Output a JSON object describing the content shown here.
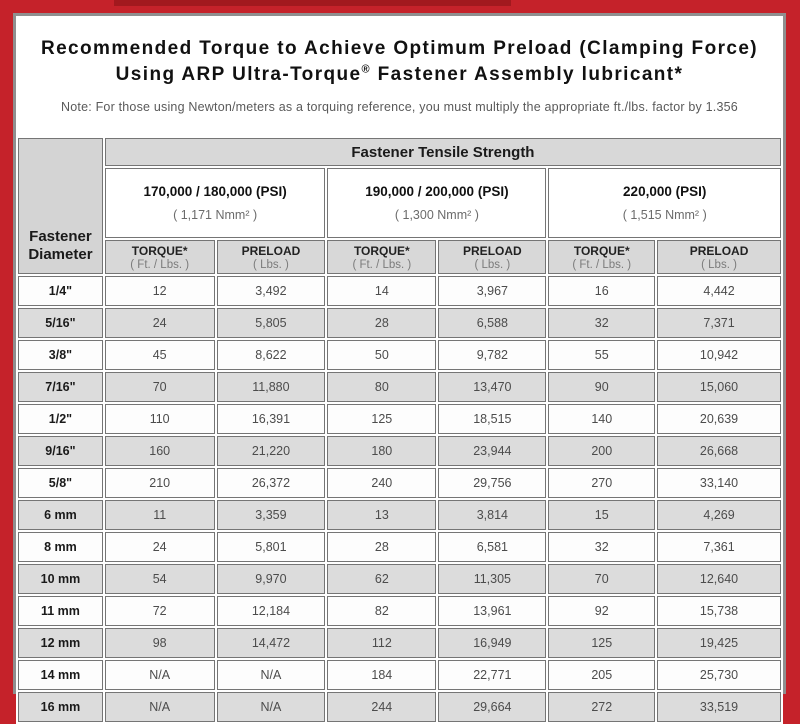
{
  "page": {
    "title_line1": "Recommended Torque to Achieve Optimum Preload (Clamping Force)",
    "title_line2_pre": "Using ARP Ultra-Torque",
    "title_line2_sup": "®",
    "title_line2_post": " Fastener Assembly lubricant*",
    "note": "Note: For those using Newton/meters as a torquing reference, you must multiply the appropriate ft./lbs. factor by 1.356"
  },
  "colors": {
    "background_red": "#c5222a",
    "dark_red_strip": "#a2191e",
    "panel_border_gray": "#8f8f8f",
    "header_gray": "#d8d8d8",
    "alt_row_gray": "#dcdcdc"
  },
  "table": {
    "tensile_header": "Fastener Tensile Strength",
    "diameter_header": "Fastener Diameter",
    "groups": [
      {
        "psi": "170,000 / 180,000 (PSI)",
        "nmm": "( 1,171 Nmm² )"
      },
      {
        "psi": "190,000 / 200,000 (PSI)",
        "nmm": "( 1,300 Nmm² )"
      },
      {
        "psi": "220,000 (PSI)",
        "nmm": "( 1,515 Nmm² )"
      }
    ],
    "sub_headers": {
      "torque_label": "TORQUE*",
      "torque_unit": "( Ft. / Lbs. )",
      "preload_label": "PRELOAD",
      "preload_unit": "( Lbs. )"
    },
    "rows": [
      {
        "diameter": "1/4\"",
        "values": [
          "12",
          "3,492",
          "14",
          "3,967",
          "16",
          "4,442"
        ]
      },
      {
        "diameter": "5/16\"",
        "values": [
          "24",
          "5,805",
          "28",
          "6,588",
          "32",
          "7,371"
        ]
      },
      {
        "diameter": "3/8\"",
        "values": [
          "45",
          "8,622",
          "50",
          "9,782",
          "55",
          "10,942"
        ]
      },
      {
        "diameter": "7/16\"",
        "values": [
          "70",
          "11,880",
          "80",
          "13,470",
          "90",
          "15,060"
        ]
      },
      {
        "diameter": "1/2\"",
        "values": [
          "110",
          "16,391",
          "125",
          "18,515",
          "140",
          "20,639"
        ]
      },
      {
        "diameter": "9/16\"",
        "values": [
          "160",
          "21,220",
          "180",
          "23,944",
          "200",
          "26,668"
        ]
      },
      {
        "diameter": "5/8\"",
        "values": [
          "210",
          "26,372",
          "240",
          "29,756",
          "270",
          "33,140"
        ]
      },
      {
        "diameter": "6 mm",
        "values": [
          "11",
          "3,359",
          "13",
          "3,814",
          "15",
          "4,269"
        ]
      },
      {
        "diameter": "8 mm",
        "values": [
          "24",
          "5,801",
          "28",
          "6,581",
          "32",
          "7,361"
        ]
      },
      {
        "diameter": "10 mm",
        "values": [
          "54",
          "9,970",
          "62",
          "11,305",
          "70",
          "12,640"
        ]
      },
      {
        "diameter": "11 mm",
        "values": [
          "72",
          "12,184",
          "82",
          "13,961",
          "92",
          "15,738"
        ]
      },
      {
        "diameter": "12 mm",
        "values": [
          "98",
          "14,472",
          "112",
          "16,949",
          "125",
          "19,425"
        ]
      },
      {
        "diameter": "14 mm",
        "values": [
          "N/A",
          "N/A",
          "184",
          "22,771",
          "205",
          "25,730"
        ]
      },
      {
        "diameter": "16 mm",
        "values": [
          "N/A",
          "N/A",
          "244",
          "29,664",
          "272",
          "33,519"
        ]
      }
    ]
  }
}
